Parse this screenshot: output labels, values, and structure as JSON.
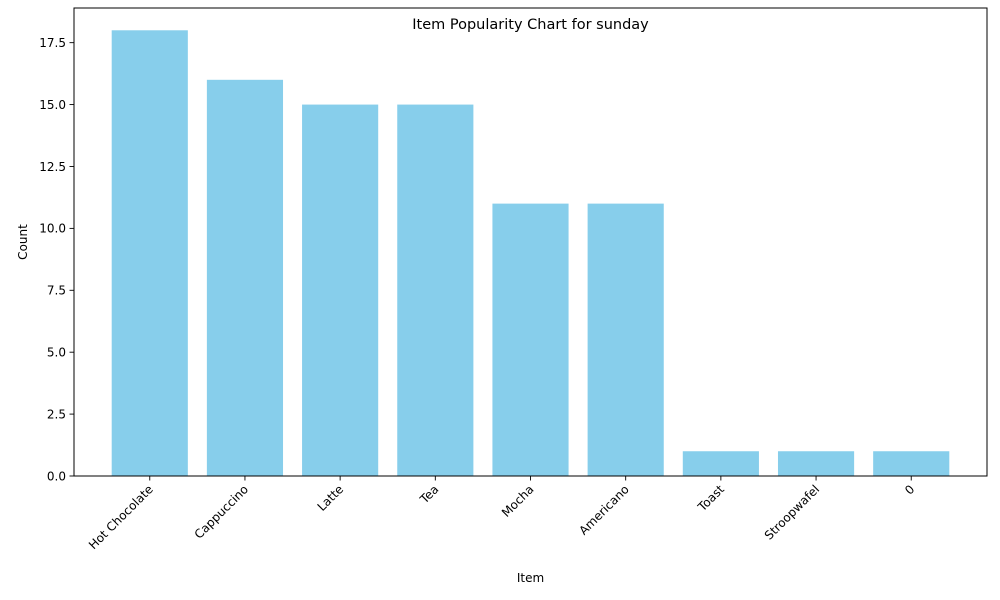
{
  "chart_data": {
    "type": "bar",
    "title": "Item Popularity Chart for sunday",
    "xlabel": "Item",
    "ylabel": "Count",
    "categories": [
      "Hot Chocolate",
      "Cappuccino",
      "Latte",
      "Tea",
      "Mocha",
      "Americano",
      "Toast",
      "Stroopwafel",
      "0"
    ],
    "values": [
      18,
      16,
      15,
      15,
      11,
      11,
      1,
      1,
      1
    ],
    "ylim": [
      0,
      18.9
    ],
    "yticks": [
      "0.0",
      "2.5",
      "5.0",
      "7.5",
      "10.0",
      "12.5",
      "15.0",
      "17.5"
    ],
    "grid": false,
    "bar_color": "#87ceeb"
  }
}
